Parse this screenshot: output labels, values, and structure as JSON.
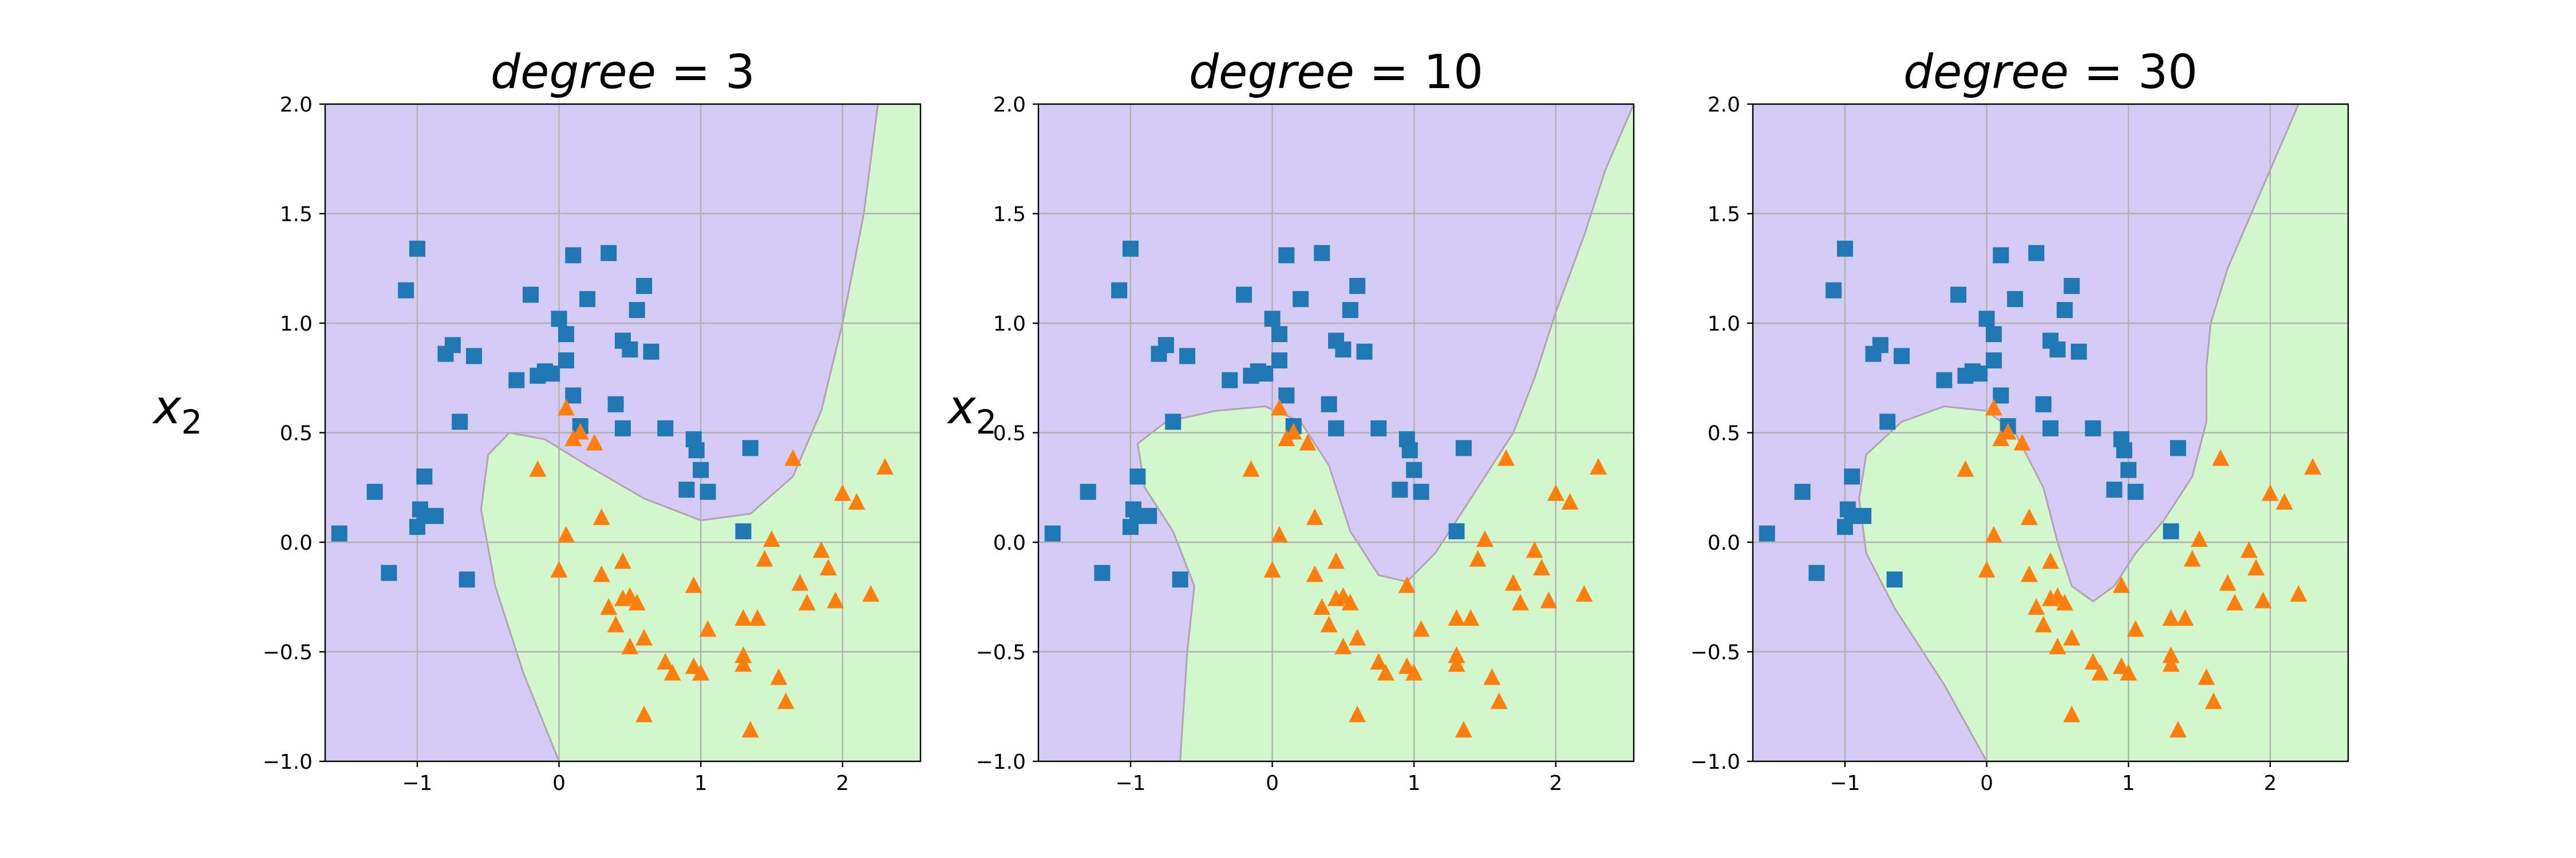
{
  "chart_data": [
    {
      "type": "scatter",
      "title": "degree = 3",
      "title_var": "degree",
      "title_value": "3",
      "xlabel": "",
      "ylabel": "x2",
      "ylabel_base": "x",
      "ylabel_sub": "2",
      "xlim": [
        -1.65,
        2.55
      ],
      "ylim": [
        -1.0,
        2.0
      ],
      "xticks": [
        -1,
        0,
        1,
        2
      ],
      "xtick_labels": [
        "−1",
        "0",
        "1",
        "2"
      ],
      "yticks": [
        -1.0,
        -0.5,
        0.0,
        0.5,
        1.0,
        1.5,
        2.0
      ],
      "ytick_labels": [
        "−1.0",
        "−0.5",
        "0.0",
        "0.5",
        "1.0",
        "1.5",
        "2.0"
      ],
      "grid": true,
      "decision_boundary": [
        [
          0.0,
          -1.0
        ],
        [
          -0.25,
          -0.6
        ],
        [
          -0.45,
          -0.2
        ],
        [
          -0.55,
          0.15
        ],
        [
          -0.5,
          0.4
        ],
        [
          -0.35,
          0.5
        ],
        [
          -0.1,
          0.47
        ],
        [
          0.2,
          0.35
        ],
        [
          0.6,
          0.2
        ],
        [
          1.0,
          0.1
        ],
        [
          1.35,
          0.13
        ],
        [
          1.65,
          0.3
        ],
        [
          1.85,
          0.6
        ],
        [
          2.0,
          1.0
        ],
        [
          2.15,
          1.5
        ],
        [
          2.25,
          2.0
        ]
      ],
      "region_colors": {
        "class0": "#d4ccf5",
        "class1": "#d2f7cd",
        "boundary": "#b79eb4"
      },
      "series": [
        {
          "marker": "square",
          "color": "#1f77b4",
          "x": [
            -1.0,
            -1.08,
            -1.55,
            -1.3,
            -1.0,
            -0.98,
            -0.95,
            -0.87,
            -0.8,
            -0.75,
            -0.7,
            -0.6,
            -0.3,
            -0.2,
            -0.15,
            -0.1,
            0.0,
            0.05,
            0.1,
            0.1,
            0.15,
            0.2,
            0.35,
            0.4,
            0.45,
            0.45,
            0.5,
            0.55,
            0.6,
            0.65,
            0.75,
            0.9,
            0.95,
            0.97,
            1.0,
            1.05,
            1.35,
            1.3,
            -1.2,
            -0.05,
            -0.95,
            -0.65,
            0.05
          ],
          "y": [
            1.34,
            1.15,
            0.04,
            0.23,
            0.07,
            0.15,
            0.12,
            0.12,
            0.86,
            0.9,
            0.55,
            0.85,
            0.74,
            1.13,
            0.76,
            0.78,
            1.02,
            0.83,
            0.67,
            1.31,
            0.53,
            1.11,
            1.32,
            0.63,
            0.92,
            0.52,
            0.88,
            1.06,
            1.17,
            0.87,
            0.52,
            0.24,
            0.47,
            0.42,
            0.33,
            0.23,
            0.43,
            0.05,
            -0.14,
            0.77,
            0.3,
            -0.17,
            0.95
          ]
        },
        {
          "marker": "triangle",
          "color": "#ff7f0e",
          "x": [
            0.05,
            -0.15,
            0.05,
            0.0,
            0.1,
            0.15,
            0.25,
            0.3,
            0.35,
            0.4,
            0.45,
            0.5,
            0.5,
            0.55,
            0.6,
            0.75,
            0.8,
            0.95,
            1.0,
            1.05,
            1.3,
            1.3,
            1.35,
            1.4,
            1.55,
            1.6,
            1.65,
            1.7,
            1.75,
            1.85,
            1.9,
            1.95,
            2.0,
            2.1,
            2.2,
            2.3,
            1.45,
            1.5,
            0.6,
            0.45,
            0.95,
            1.3,
            0.3
          ],
          "y": [
            0.61,
            0.33,
            0.03,
            -0.13,
            0.47,
            0.5,
            0.45,
            0.11,
            -0.3,
            -0.38,
            -0.09,
            -0.25,
            -0.48,
            -0.28,
            -0.44,
            -0.55,
            -0.6,
            -0.57,
            -0.6,
            -0.4,
            -0.56,
            -0.52,
            -0.86,
            -0.35,
            -0.62,
            -0.73,
            0.38,
            -0.19,
            -0.28,
            -0.04,
            -0.12,
            -0.27,
            0.22,
            0.18,
            -0.24,
            0.34,
            -0.08,
            0.01,
            -0.79,
            -0.26,
            -0.2,
            -0.35,
            -0.15
          ]
        }
      ]
    },
    {
      "type": "scatter",
      "title": "degree = 10",
      "title_var": "degree",
      "title_value": "10",
      "xlabel": "",
      "ylabel": "x2",
      "ylabel_base": "x",
      "ylabel_sub": "2",
      "xlim": [
        -1.65,
        2.55
      ],
      "ylim": [
        -1.0,
        2.0
      ],
      "xticks": [
        -1,
        0,
        1,
        2
      ],
      "xtick_labels": [
        "−1",
        "0",
        "1",
        "2"
      ],
      "yticks": [
        -1.0,
        -0.5,
        0.0,
        0.5,
        1.0,
        1.5,
        2.0
      ],
      "ytick_labels": [
        "−1.0",
        "−0.5",
        "0.0",
        "0.5",
        "1.0",
        "1.5",
        "2.0"
      ],
      "grid": true,
      "decision_boundary": [
        [
          -0.65,
          -1.0
        ],
        [
          -0.6,
          -0.5
        ],
        [
          -0.55,
          -0.2
        ],
        [
          -0.7,
          0.05
        ],
        [
          -0.9,
          0.25
        ],
        [
          -0.95,
          0.45
        ],
        [
          -0.75,
          0.55
        ],
        [
          -0.4,
          0.6
        ],
        [
          -0.05,
          0.62
        ],
        [
          0.2,
          0.55
        ],
        [
          0.4,
          0.35
        ],
        [
          0.55,
          0.05
        ],
        [
          0.75,
          -0.15
        ],
        [
          0.95,
          -0.18
        ],
        [
          1.15,
          -0.05
        ],
        [
          1.35,
          0.15
        ],
        [
          1.55,
          0.35
        ],
        [
          1.7,
          0.5
        ],
        [
          1.85,
          0.75
        ],
        [
          2.0,
          1.05
        ],
        [
          2.2,
          1.4
        ],
        [
          2.35,
          1.7
        ],
        [
          2.55,
          2.0
        ]
      ],
      "region_colors": {
        "class0": "#d4ccf5",
        "class1": "#d2f7cd",
        "boundary": "#b79eb4"
      },
      "series": [
        {
          "marker": "square",
          "color": "#1f77b4",
          "x": [
            -1.0,
            -1.08,
            -1.55,
            -1.3,
            -1.0,
            -0.98,
            -0.95,
            -0.87,
            -0.8,
            -0.75,
            -0.7,
            -0.6,
            -0.3,
            -0.2,
            -0.15,
            -0.1,
            0.0,
            0.05,
            0.1,
            0.1,
            0.15,
            0.2,
            0.35,
            0.4,
            0.45,
            0.45,
            0.5,
            0.55,
            0.6,
            0.65,
            0.75,
            0.9,
            0.95,
            0.97,
            1.0,
            1.05,
            1.35,
            1.3,
            -1.2,
            -0.05,
            -0.95,
            -0.65,
            0.05
          ],
          "y": [
            1.34,
            1.15,
            0.04,
            0.23,
            0.07,
            0.15,
            0.12,
            0.12,
            0.86,
            0.9,
            0.55,
            0.85,
            0.74,
            1.13,
            0.76,
            0.78,
            1.02,
            0.83,
            0.67,
            1.31,
            0.53,
            1.11,
            1.32,
            0.63,
            0.92,
            0.52,
            0.88,
            1.06,
            1.17,
            0.87,
            0.52,
            0.24,
            0.47,
            0.42,
            0.33,
            0.23,
            0.43,
            0.05,
            -0.14,
            0.77,
            0.3,
            -0.17,
            0.95
          ]
        },
        {
          "marker": "triangle",
          "color": "#ff7f0e",
          "x": [
            0.05,
            -0.15,
            0.05,
            0.0,
            0.1,
            0.15,
            0.25,
            0.3,
            0.35,
            0.4,
            0.45,
            0.5,
            0.5,
            0.55,
            0.6,
            0.75,
            0.8,
            0.95,
            1.0,
            1.05,
            1.3,
            1.3,
            1.35,
            1.4,
            1.55,
            1.6,
            1.65,
            1.7,
            1.75,
            1.85,
            1.9,
            1.95,
            2.0,
            2.1,
            2.2,
            2.3,
            1.45,
            1.5,
            0.6,
            0.45,
            0.95,
            1.3,
            0.3
          ],
          "y": [
            0.61,
            0.33,
            0.03,
            -0.13,
            0.47,
            0.5,
            0.45,
            0.11,
            -0.3,
            -0.38,
            -0.09,
            -0.25,
            -0.48,
            -0.28,
            -0.44,
            -0.55,
            -0.6,
            -0.57,
            -0.6,
            -0.4,
            -0.56,
            -0.52,
            -0.86,
            -0.35,
            -0.62,
            -0.73,
            0.38,
            -0.19,
            -0.28,
            -0.04,
            -0.12,
            -0.27,
            0.22,
            0.18,
            -0.24,
            0.34,
            -0.08,
            0.01,
            -0.79,
            -0.26,
            -0.2,
            -0.35,
            -0.15
          ]
        }
      ]
    },
    {
      "type": "scatter",
      "title": "degree = 30",
      "title_var": "degree",
      "title_value": "30",
      "xlabel": "",
      "ylabel": "",
      "ylabel_base": "",
      "ylabel_sub": "",
      "xlim": [
        -1.65,
        2.55
      ],
      "ylim": [
        -1.0,
        2.0
      ],
      "xticks": [
        -1,
        0,
        1,
        2
      ],
      "xtick_labels": [
        "−1",
        "0",
        "1",
        "2"
      ],
      "yticks": [
        -1.0,
        -0.5,
        0.0,
        0.5,
        1.0,
        1.5,
        2.0
      ],
      "ytick_labels": [
        "−1.0",
        "−0.5",
        "0.0",
        "0.5",
        "1.0",
        "1.5",
        "2.0"
      ],
      "grid": true,
      "decision_boundary": [
        [
          0.0,
          -1.0
        ],
        [
          -0.3,
          -0.65
        ],
        [
          -0.65,
          -0.3
        ],
        [
          -0.85,
          -0.05
        ],
        [
          -0.9,
          0.2
        ],
        [
          -0.85,
          0.4
        ],
        [
          -0.6,
          0.55
        ],
        [
          -0.3,
          0.62
        ],
        [
          0.0,
          0.6
        ],
        [
          0.2,
          0.5
        ],
        [
          0.4,
          0.25
        ],
        [
          0.5,
          0.0
        ],
        [
          0.6,
          -0.2
        ],
        [
          0.75,
          -0.27
        ],
        [
          0.9,
          -0.2
        ],
        [
          1.05,
          -0.05
        ],
        [
          1.25,
          0.1
        ],
        [
          1.45,
          0.3
        ],
        [
          1.55,
          0.55
        ],
        [
          1.55,
          0.8
        ],
        [
          1.58,
          1.0
        ],
        [
          1.7,
          1.25
        ],
        [
          1.9,
          1.55
        ],
        [
          2.1,
          1.85
        ],
        [
          2.2,
          2.0
        ]
      ],
      "region_colors": {
        "class0": "#d4ccf5",
        "class1": "#d2f7cd",
        "boundary": "#b79eb4"
      },
      "series": [
        {
          "marker": "square",
          "color": "#1f77b4",
          "x": [
            -1.0,
            -1.08,
            -1.55,
            -1.3,
            -1.0,
            -0.98,
            -0.95,
            -0.87,
            -0.8,
            -0.75,
            -0.7,
            -0.6,
            -0.3,
            -0.2,
            -0.15,
            -0.1,
            0.0,
            0.05,
            0.1,
            0.1,
            0.15,
            0.2,
            0.35,
            0.4,
            0.45,
            0.45,
            0.5,
            0.55,
            0.6,
            0.65,
            0.75,
            0.9,
            0.95,
            0.97,
            1.0,
            1.05,
            1.35,
            1.3,
            -1.2,
            -0.05,
            -0.95,
            -0.65,
            0.05
          ],
          "y": [
            1.34,
            1.15,
            0.04,
            0.23,
            0.07,
            0.15,
            0.12,
            0.12,
            0.86,
            0.9,
            0.55,
            0.85,
            0.74,
            1.13,
            0.76,
            0.78,
            1.02,
            0.83,
            0.67,
            1.31,
            0.53,
            1.11,
            1.32,
            0.63,
            0.92,
            0.52,
            0.88,
            1.06,
            1.17,
            0.87,
            0.52,
            0.24,
            0.47,
            0.42,
            0.33,
            0.23,
            0.43,
            0.05,
            -0.14,
            0.77,
            0.3,
            -0.17,
            0.95
          ]
        },
        {
          "marker": "triangle",
          "color": "#ff7f0e",
          "x": [
            0.05,
            -0.15,
            0.05,
            0.0,
            0.1,
            0.15,
            0.25,
            0.3,
            0.35,
            0.4,
            0.45,
            0.5,
            0.5,
            0.55,
            0.6,
            0.75,
            0.8,
            0.95,
            1.0,
            1.05,
            1.3,
            1.3,
            1.35,
            1.4,
            1.55,
            1.6,
            1.65,
            1.7,
            1.75,
            1.85,
            1.9,
            1.95,
            2.0,
            2.1,
            2.2,
            2.3,
            1.45,
            1.5,
            0.6,
            0.45,
            0.95,
            1.3,
            0.3
          ],
          "y": [
            0.61,
            0.33,
            0.03,
            -0.13,
            0.47,
            0.5,
            0.45,
            0.11,
            -0.3,
            -0.38,
            -0.09,
            -0.25,
            -0.48,
            -0.28,
            -0.44,
            -0.55,
            -0.6,
            -0.57,
            -0.6,
            -0.4,
            -0.56,
            -0.52,
            -0.86,
            -0.35,
            -0.62,
            -0.73,
            0.38,
            -0.19,
            -0.28,
            -0.04,
            -0.12,
            -0.27,
            0.22,
            0.18,
            -0.24,
            0.34,
            -0.08,
            0.01,
            -0.79,
            -0.26,
            -0.2,
            -0.35,
            -0.15
          ]
        }
      ]
    }
  ]
}
